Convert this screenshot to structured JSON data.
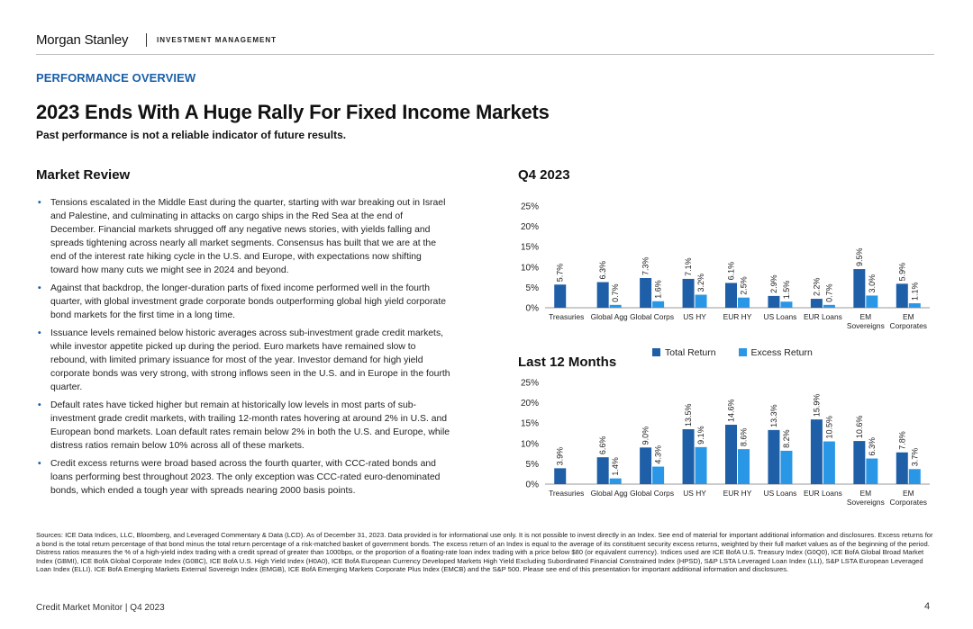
{
  "header": {
    "brand": "Morgan Stanley",
    "division": "INVESTMENT MANAGEMENT"
  },
  "section_label": "PERFORMANCE OVERVIEW",
  "title": "2023 Ends With A Huge Rally For Fixed Income Markets",
  "subtitle": "Past performance is not a reliable indicator of future results.",
  "market_review": {
    "heading": "Market Review",
    "bullets": [
      "Tensions escalated in the Middle East during the quarter, starting with war breaking out in Israel and Palestine, and culminating in attacks on cargo ships in the Red Sea at the end of December. Financial markets shrugged off any negative news stories, with yields falling and spreads tightening across nearly all market segments. Consensus has built that we are at the end of the interest rate hiking cycle in the U.S. and Europe, with expectations now shifting toward how many cuts we might see in 2024 and beyond.",
      "Against that backdrop, the longer-duration parts of fixed income performed well in the fourth quarter, with global investment grade corporate bonds outperforming global high yield corporate bond markets for the first time in a long time.",
      "Issuance levels remained below historic averages across sub-investment grade credit markets, while investor appetite picked up during the period. Euro markets have remained slow to rebound, with limited primary issuance for most of the year. Investor demand for high yield corporate bonds was very strong, with strong inflows seen in the U.S. and in Europe in the fourth quarter.",
      "Default rates have ticked higher but remain at historically low levels in most parts of sub-investment grade credit markets, with trailing 12-month rates hovering at around 2% in U.S. and European bond markets. Loan default rates remain below 2% in both the U.S. and Europe, while distress ratios remain below 10% across all of these markets.",
      "Credit excess returns were broad based across the fourth quarter, with CCC-rated bonds and loans performing best throughout 2023. The only exception was CCC-rated euro-denominated bonds, which ended a tough year with spreads nearing 2000 basis points."
    ]
  },
  "colors": {
    "total_return": "#1f5fa8",
    "excess_return": "#2a97e6",
    "accent": "#1a5fa8"
  },
  "legend": {
    "total_label": "Total Return",
    "excess_label": "Excess Return"
  },
  "chart_data": [
    {
      "type": "bar",
      "title": "Q4 2023",
      "categories": [
        "Treasuries",
        "Global Agg",
        "Global Corps",
        "US HY",
        "EUR HY",
        "US Loans",
        "EUR Loans",
        "EM Sovereigns",
        "EM Corporates"
      ],
      "series": [
        {
          "name": "Total Return",
          "values": [
            5.7,
            6.3,
            7.3,
            7.1,
            6.1,
            2.9,
            2.2,
            9.5,
            5.9
          ]
        },
        {
          "name": "Excess Return",
          "values": [
            null,
            0.7,
            1.6,
            3.2,
            2.5,
            1.5,
            0.7,
            3.0,
            1.1
          ]
        }
      ],
      "data_labels_total": [
        "5.7%",
        "6.3%",
        "7.3%",
        "7.1%",
        "6.1%",
        "2.9%",
        "2.2%",
        "9.5%",
        "5.9%"
      ],
      "data_labels_excess": [
        "",
        "0.7%",
        "1.6%",
        "3.2%",
        "2.5%",
        "1.5%",
        "0.7%",
        "3.0%",
        "1.1%"
      ],
      "ylim": [
        0,
        25
      ],
      "yticks": [
        0,
        5,
        10,
        15,
        20,
        25
      ],
      "ytick_labels": [
        "0%",
        "5%",
        "10%",
        "15%",
        "20%",
        "25%"
      ],
      "legend": "none"
    },
    {
      "type": "bar",
      "title": "Last 12 Months",
      "categories": [
        "Treasuries",
        "Global Agg",
        "Global Corps",
        "US HY",
        "EUR HY",
        "US Loans",
        "EUR Loans",
        "EM Sovereigns",
        "EM Corporates"
      ],
      "series": [
        {
          "name": "Total Return",
          "values": [
            3.9,
            6.6,
            9.0,
            13.5,
            14.6,
            13.3,
            15.9,
            10.6,
            7.8
          ]
        },
        {
          "name": "Excess Return",
          "values": [
            null,
            1.4,
            4.3,
            9.1,
            8.6,
            8.2,
            10.5,
            6.3,
            3.7
          ]
        }
      ],
      "data_labels_total": [
        "3.9%",
        "6.6%",
        "9.0%",
        "13.5%",
        "14.6%",
        "13.3%",
        "15.9%",
        "10.6%",
        "7.8%"
      ],
      "data_labels_excess": [
        "",
        "1.4%",
        "4.3%",
        "9.1%",
        "8.6%",
        "8.2%",
        "10.5%",
        "6.3%",
        "3.7%"
      ],
      "ylim": [
        0,
        25
      ],
      "yticks": [
        0,
        5,
        10,
        15,
        20,
        25
      ],
      "ytick_labels": [
        "0%",
        "5%",
        "10%",
        "15%",
        "20%",
        "25%"
      ],
      "legend": "top"
    }
  ],
  "sources": "Sources: ICE Data Indices, LLC, Bloomberg, and Leveraged Commentary & Data (LCD). As of December 31, 2023. Data provided is for informational use only. It is not possible to invest directly in an Index. See end of material for important additional information and disclosures. Excess returns for a bond is the total return percentage of that bond minus the total return percentage of a risk-matched basket of government bonds. The excess return of an Index is equal to the average of its constituent security excess returns, weighted by their full market values as of the beginning of the period. Distress ratios measures the % of a high-yield index trading with a credit spread of greater than 1000bps, or the proportion of a floating-rate loan index trading with a price below $80 (or equivalent currency). Indices used are ICE BofA U.S. Treasury Index (G0Q0), ICE BofA Global Broad Market Index (GBMI), ICE BofA Global Corporate Index (G0BC), ICE BofA U.S. High Yield Index (H0A0), ICE BofA European Currency Developed Markets High Yield Excluding Subordinated Financial Constrained Index (HPSD), S&P LSTA Leveraged Loan Index (LLI), S&P LSTA European Leveraged Loan Index (ELLI). ICE BofA Emerging Markets External Sovereign Index (EMGB), ICE BofA Emerging Markets Corporate Plus Index (EMCB) and the S&P 500. Please see end of this presentation for important additional information and disclosures.",
  "footer": {
    "left": "Credit Market Monitor | Q4 2023",
    "page": "4"
  }
}
